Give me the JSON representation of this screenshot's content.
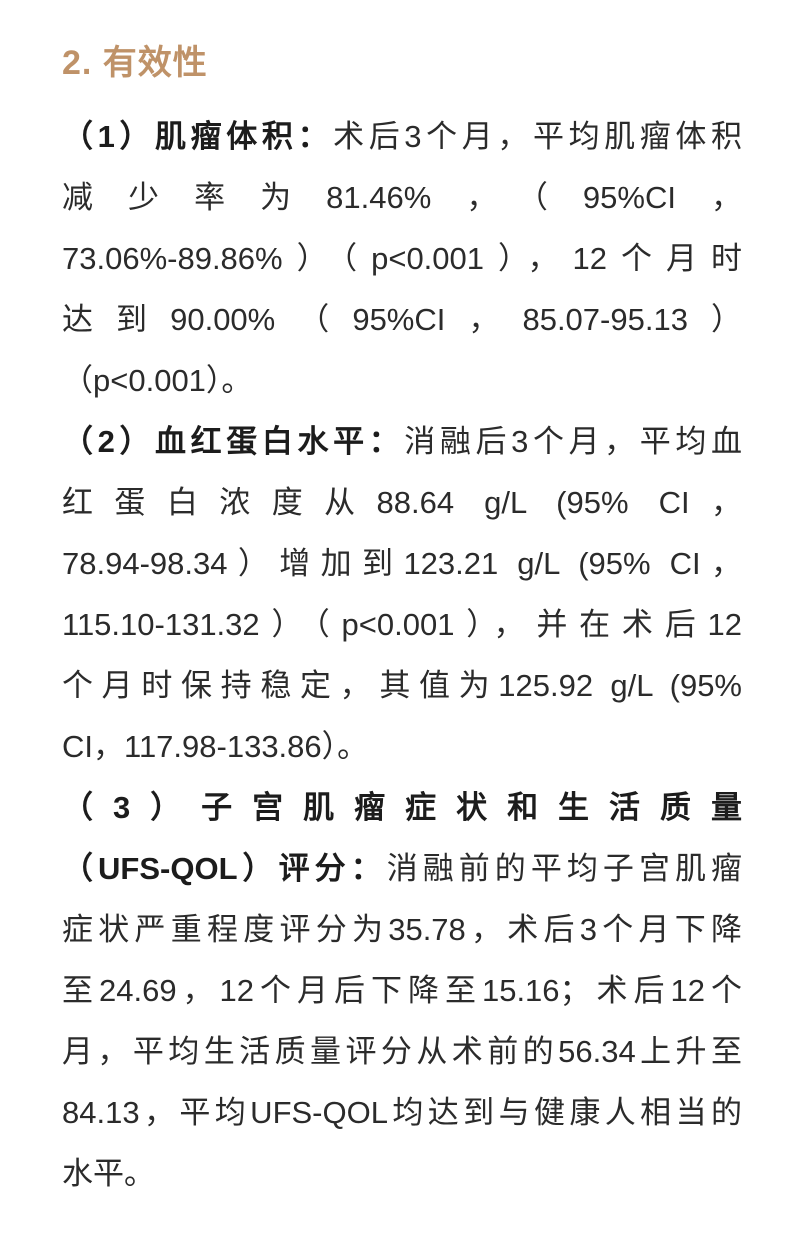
{
  "colors": {
    "accent": "#bf9268",
    "body_text": "#2b2b2b",
    "bold_text": "#1c1c1c",
    "background": "#ffffff"
  },
  "heading": {
    "text": "2. 有效性"
  },
  "paragraphs": [
    {
      "lines": [
        {
          "lead": "（1）肌瘤体积：",
          "text": "术后3个月，平均肌瘤体积"
        },
        {
          "text": "减少率为81.46%，（95%CI，"
        },
        {
          "text": "73.06%-89.86%）（p<0.001），12个月时"
        },
        {
          "text": "达到90.00%（95%CI，85.07-95.13）"
        },
        {
          "text": "（p<0.001）。"
        }
      ]
    },
    {
      "lines": [
        {
          "lead": "（2）血红蛋白水平：",
          "text": "消融后3个月，平均血"
        },
        {
          "text": "红蛋白浓度从88.64 g/L (95% CI，"
        },
        {
          "text": "78.94-98.34）增加到123.21 g/L (95% CI，"
        },
        {
          "text": "115.10-131.32）（p<0.001），并在术后12"
        },
        {
          "text": "个月时保持稳定，其值为125.92 g/L (95%"
        },
        {
          "text": "CI，117.98-133.86）。"
        }
      ]
    },
    {
      "lines": [
        {
          "lead": "（3）子宫肌瘤症状和生活质量"
        },
        {
          "lead": "（UFS-QOL）评分：",
          "text": "消融前的平均子宫肌瘤"
        },
        {
          "text": "症状严重程度评分为35.78，术后3个月下降"
        },
        {
          "text": "至24.69，12个月后下降至15.16；术后12个"
        },
        {
          "text": "月，平均生活质量评分从术前的56.34上升至"
        },
        {
          "text": "84.13，平均UFS-QOL均达到与健康人相当的"
        },
        {
          "text": "水平。"
        }
      ]
    }
  ]
}
